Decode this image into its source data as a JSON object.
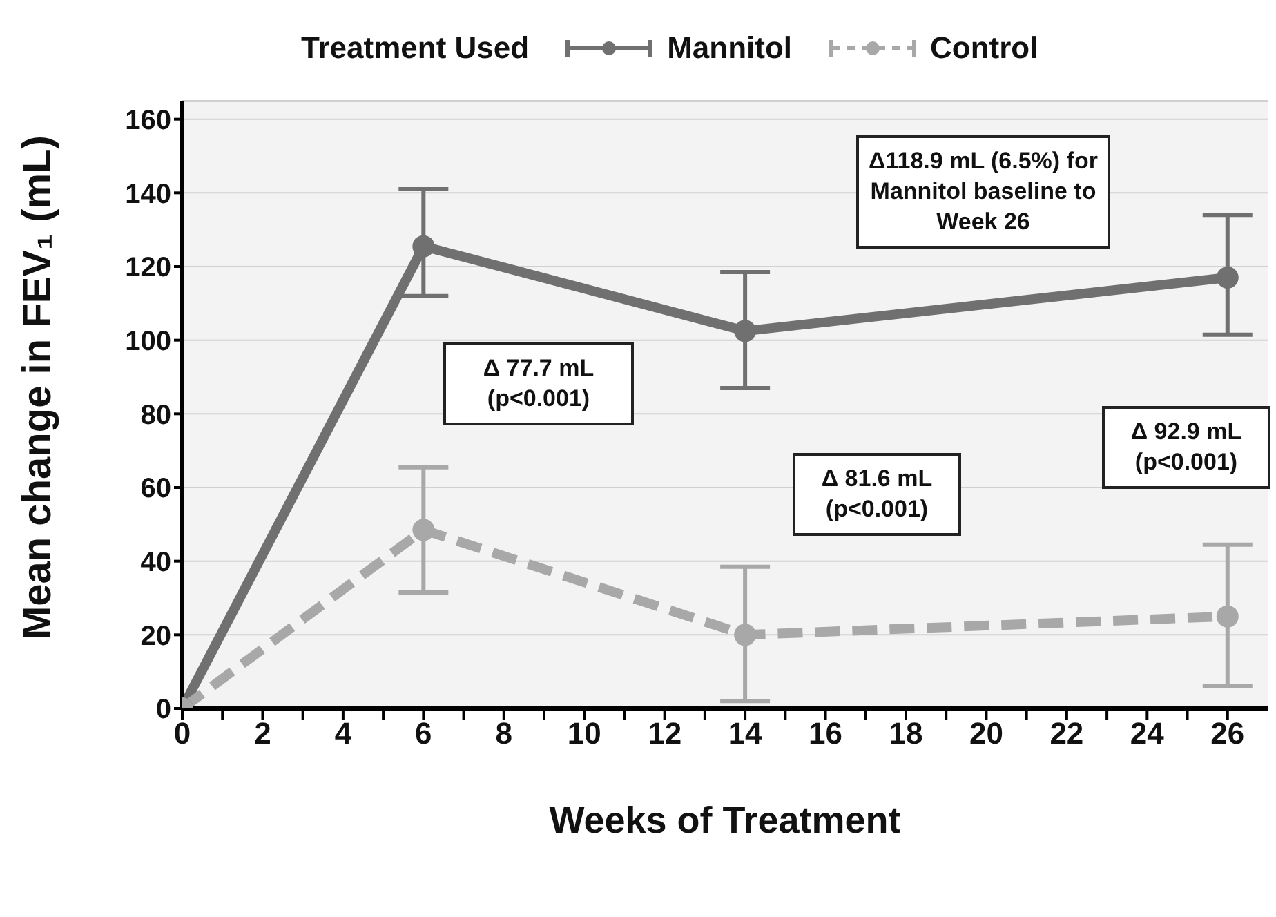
{
  "chart_data": {
    "type": "line",
    "xlabel": "Weeks of Treatment",
    "ylabel": "Mean change in FEV₁ (mL)",
    "legend_title": "Treatment Used",
    "legend": "top",
    "x": [
      0,
      6,
      14,
      26
    ],
    "series": [
      {
        "name": "Mannitol",
        "color": "#707070",
        "line_style": "solid",
        "values": [
          0,
          125.5,
          102.5,
          117
        ],
        "errors": [
          null,
          [
            112,
            141
          ],
          [
            87,
            118.5
          ],
          [
            101.5,
            134
          ]
        ]
      },
      {
        "name": "Control",
        "color": "#a8a8a8",
        "line_style": "dashed",
        "values": [
          0,
          48.5,
          20,
          25
        ],
        "errors": [
          null,
          [
            31.5,
            65.5
          ],
          [
            2,
            38.5
          ],
          [
            6,
            44.5
          ]
        ]
      }
    ],
    "marker": "circle",
    "xlim": [
      0,
      27
    ],
    "xticks": [
      0,
      {
        "value": 1,
        "label": null
      },
      2,
      {
        "value": 3,
        "label": null
      },
      4,
      {
        "value": 5,
        "label": null
      },
      6,
      {
        "value": 7,
        "label": null
      },
      8,
      {
        "value": 9,
        "label": null
      },
      10,
      {
        "value": 11,
        "label": null
      },
      12,
      {
        "value": 13,
        "label": null
      },
      14,
      {
        "value": 15,
        "label": null
      },
      16,
      {
        "value": 17,
        "label": null
      },
      18,
      {
        "value": 19,
        "label": null
      },
      20,
      {
        "value": 21,
        "label": null
      },
      22,
      {
        "value": 23,
        "label": null
      },
      24,
      {
        "value": 25,
        "label": null
      },
      26
    ],
    "ylim": [
      0,
      165
    ],
    "yticks": [
      0,
      20,
      40,
      60,
      80,
      100,
      120,
      140,
      160
    ],
    "grid": "y",
    "annotations": [
      "Δ118.9 mL (6.5%) for Mannitol baseline to Week 26",
      "Δ 77.7 mL (p<0.001)",
      "Δ 81.6 mL (p<0.001)",
      "Δ 92.9 mL (p<0.001)"
    ]
  }
}
